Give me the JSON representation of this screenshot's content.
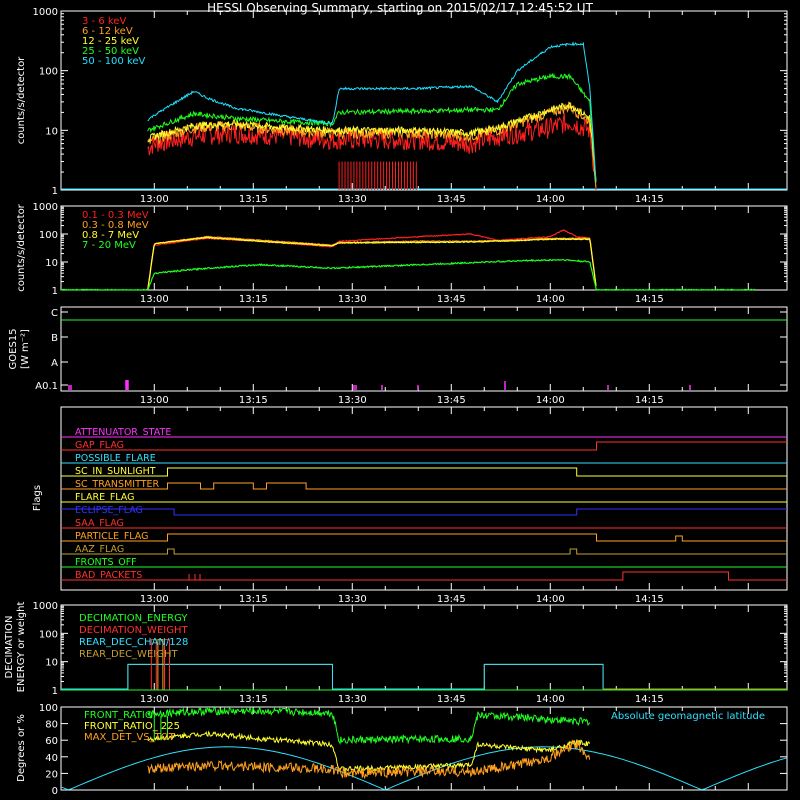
{
  "title": "HESSI Observing Summary, starting on 2015/02/17 12:45:52 UT",
  "time_ticks": [
    "13:00",
    "13:15",
    "13:30",
    "13:45",
    "14:00",
    "14:15"
  ],
  "chart_data": [
    {
      "type": "line",
      "name": "count-rates-low",
      "ylabel": "counts/s/detector",
      "yscale": "log",
      "ylim": [
        1,
        1000
      ],
      "yticks": [
        "1",
        "10",
        "100",
        "1000"
      ],
      "xlim_minutes_after_1245_52": [
        0,
        110
      ],
      "series": [
        {
          "name": "3 - 6 keV",
          "color": "#ff2020",
          "x": [
            "12:59",
            "13:00",
            "13:06",
            "13:12",
            "13:20",
            "13:27",
            "13:28",
            "13:40",
            "13:48",
            "13:52",
            "14:00",
            "14:03",
            "14:06",
            "14:07"
          ],
          "y": [
            5,
            6,
            8,
            9,
            8,
            7,
            7,
            7,
            6,
            8,
            11,
            14,
            10,
            1
          ]
        },
        {
          "name": "6 - 12 keV",
          "color": "#ffa020",
          "x": [
            "12:59",
            "13:00",
            "13:06",
            "13:12",
            "13:20",
            "13:27",
            "13:28",
            "13:40",
            "13:48",
            "13:52",
            "14:00",
            "14:03",
            "14:06",
            "14:07"
          ],
          "y": [
            6,
            7,
            11,
            12,
            10,
            9,
            9,
            9,
            8,
            10,
            20,
            25,
            14,
            1
          ]
        },
        {
          "name": "12 - 25 keV",
          "color": "#ffff30",
          "x": [
            "12:59",
            "13:00",
            "13:06",
            "13:12",
            "13:20",
            "13:27",
            "13:28",
            "13:40",
            "13:48",
            "13:52",
            "14:00",
            "14:03",
            "14:06",
            "14:07"
          ],
          "y": [
            7,
            8,
            12,
            13,
            11,
            10,
            10,
            10,
            9,
            11,
            22,
            27,
            16,
            1
          ]
        },
        {
          "name": "25 - 50 keV",
          "color": "#20ff20",
          "x": [
            "12:59",
            "13:00",
            "13:06",
            "13:12",
            "13:20",
            "13:27",
            "13:28",
            "13:40",
            "13:48",
            "13:52",
            "13:55",
            "14:00",
            "14:03",
            "14:06",
            "14:07"
          ],
          "y": [
            10,
            11,
            19,
            16,
            14,
            13,
            20,
            21,
            22,
            22,
            60,
            80,
            80,
            30,
            1
          ]
        },
        {
          "name": "50 - 100 keV",
          "color": "#20e0ff",
          "x": [
            "12:59",
            "13:00",
            "13:06",
            "13:08",
            "13:12",
            "13:20",
            "13:27",
            "13:28",
            "13:40",
            "13:48",
            "13:52",
            "13:55",
            "14:00",
            "14:03",
            "14:05",
            "14:06",
            "14:07"
          ],
          "y": [
            15,
            18,
            45,
            35,
            24,
            17,
            13,
            50,
            50,
            55,
            30,
            100,
            250,
            280,
            280,
            50,
            1
          ]
        }
      ]
    },
    {
      "type": "line",
      "name": "count-rates-high",
      "ylabel": "counts/s/detector",
      "yscale": "log",
      "ylim": [
        1,
        1000
      ],
      "yticks": [
        "1",
        "10",
        "100",
        "1000"
      ],
      "series": [
        {
          "name": "0.1 - 0.3 MeV",
          "color": "#ff2020",
          "x": [
            "12:59",
            "13:00",
            "13:08",
            "13:16",
            "13:27",
            "13:28",
            "13:40",
            "13:48",
            "13:52",
            "14:00",
            "14:02",
            "14:04",
            "14:06",
            "14:07"
          ],
          "y": [
            1,
            40,
            70,
            55,
            35,
            55,
            80,
            100,
            60,
            80,
            140,
            80,
            70,
            1
          ]
        },
        {
          "name": "0.3 - 0.8 MeV",
          "color": "#ffa020",
          "x": [
            "12:59",
            "13:00",
            "13:08",
            "13:16",
            "13:27",
            "13:28",
            "13:40",
            "13:48",
            "13:55",
            "14:00",
            "14:06",
            "14:07"
          ],
          "y": [
            1,
            45,
            80,
            60,
            40,
            50,
            55,
            55,
            60,
            70,
            70,
            1
          ]
        },
        {
          "name": "0.8 - 7 MeV",
          "color": "#ffff30",
          "x": [
            "12:59",
            "13:00",
            "13:08",
            "13:16",
            "13:27",
            "13:28",
            "13:40",
            "13:48",
            "13:55",
            "14:00",
            "14:06",
            "14:07"
          ],
          "y": [
            1,
            45,
            75,
            55,
            38,
            48,
            50,
            52,
            58,
            65,
            65,
            1
          ]
        },
        {
          "name": "7 - 20 MeV",
          "color": "#20ff20",
          "x": [
            "12:45:52",
            "12:59",
            "13:00",
            "13:08",
            "13:16",
            "13:27",
            "13:40",
            "13:55",
            "14:02",
            "14:06",
            "14:07",
            "14:31"
          ],
          "y": [
            1,
            1,
            4,
            6,
            8,
            6,
            8,
            11,
            12,
            10,
            1,
            1
          ]
        }
      ]
    },
    {
      "type": "line",
      "name": "goes",
      "ylabel": "GOES15",
      "ylabel2": "[W m⁻²]",
      "yticks": [
        "A0.1",
        "A",
        "B",
        "C"
      ],
      "series": [
        {
          "name": "GOES flux",
          "color": "#20ff20"
        }
      ]
    },
    {
      "type": "line",
      "name": "flags",
      "ylabel": "Flags",
      "series": [
        {
          "name": "ATTENUATOR_STATE",
          "color": "#ff30ff"
        },
        {
          "name": "GAP_FLAG",
          "color": "#ff3030"
        },
        {
          "name": "POSSIBLE_FLARE",
          "color": "#30e0ff"
        },
        {
          "name": "SC_IN_SUNLIGHT",
          "color": "#ffff30"
        },
        {
          "name": "SC_TRANSMITTER",
          "color": "#ffa020"
        },
        {
          "name": "FLARE_FLAG",
          "color": "#ffff30"
        },
        {
          "name": "ECLIPSE_FLAG",
          "color": "#3030ff"
        },
        {
          "name": "SAA_FLAG",
          "color": "#ff3030"
        },
        {
          "name": "PARTICLE_FLAG",
          "color": "#ffa020"
        },
        {
          "name": "AAZ_FLAG",
          "color": "#c0a030"
        },
        {
          "name": "FRONTS_OFF",
          "color": "#20ff20"
        },
        {
          "name": "BAD_PACKETS",
          "color": "#ff3030"
        }
      ]
    },
    {
      "type": "line",
      "name": "decimation",
      "ylabel": "DECIMATION",
      "ylabel2": "ENERGY or weight",
      "yscale": "log",
      "ylim": [
        1,
        1000
      ],
      "yticks": [
        "1",
        "10",
        "100",
        "1000"
      ],
      "series": [
        {
          "name": "DECIMATION_ENERGY",
          "color": "#20ff20"
        },
        {
          "name": "DECIMATION_WEIGHT",
          "color": "#ff3030"
        },
        {
          "name": "REAR_DEC_CHAN/128",
          "color": "#30e0ff"
        },
        {
          "name": "REAR_DEC_WEIGHT",
          "color": "#c0a030"
        }
      ]
    },
    {
      "type": "line",
      "name": "front-ratio",
      "ylabel": "Degrees or %",
      "ylim": [
        0,
        100
      ],
      "yticks": [
        "0",
        "20",
        "40",
        "60",
        "80",
        "100"
      ],
      "annotation": "Absolute geomagnetic latitude",
      "series": [
        {
          "name": "FRONT_RATIO",
          "color": "#20ff20",
          "x": [
            "12:59",
            "13:00",
            "13:08",
            "13:16",
            "13:27",
            "13:28",
            "13:48",
            "13:49",
            "13:55",
            "14:00",
            "14:04",
            "14:06"
          ],
          "y": [
            90,
            92,
            95,
            95,
            93,
            60,
            62,
            90,
            88,
            85,
            83,
            82
          ]
        },
        {
          "name": "FRONT_RATIO_ 225",
          "color": "#ffff30",
          "x": [
            "12:59",
            "13:00",
            "13:08",
            "13:16",
            "13:27",
            "13:28",
            "13:48",
            "13:49",
            "13:55",
            "14:00",
            "14:04",
            "14:06"
          ],
          "y": [
            60,
            62,
            68,
            62,
            55,
            25,
            30,
            55,
            50,
            48,
            58,
            55
          ]
        },
        {
          "name": "MAX_DET_VS_TOT",
          "color": "#ffa020",
          "x": [
            "12:59",
            "13:00",
            "13:08",
            "13:16",
            "13:27",
            "13:28",
            "13:40",
            "13:48",
            "13:55",
            "14:00",
            "14:04",
            "14:06"
          ],
          "y": [
            25,
            25,
            30,
            28,
            25,
            20,
            22,
            22,
            30,
            40,
            55,
            40
          ]
        },
        {
          "name": "Absolute geomagnetic latitude",
          "color": "#30e0ff"
        }
      ]
    }
  ]
}
